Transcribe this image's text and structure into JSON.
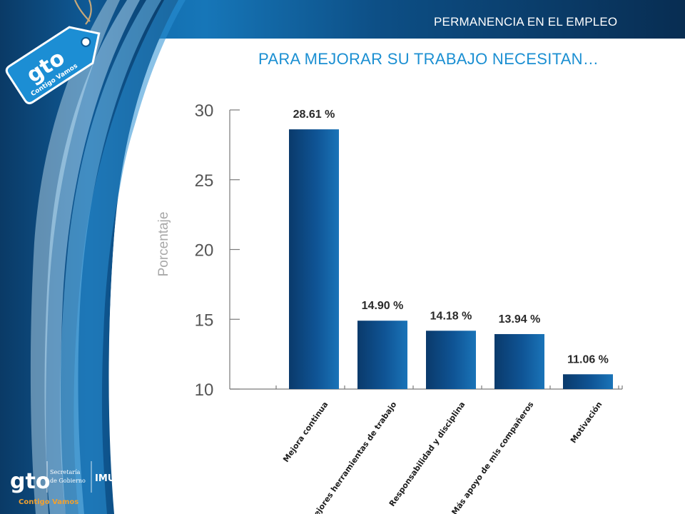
{
  "header": {
    "title": "PERMANENCIA EN EL EMPLEO"
  },
  "slide": {
    "title": "PARA MEJORAR SU TRABAJO NECESITAN…"
  },
  "logo_tag": {
    "brand": "gto",
    "tagline": "Contigo Vamos"
  },
  "footer_logo": {
    "brand": "gto",
    "org_line1": "Secretaría",
    "org_line2": "de Gobierno",
    "unit": "IMUG",
    "tagline": "Contigo Vamos"
  },
  "colors": {
    "bar_dark": "#0b3f73",
    "bar_light": "#1a72b5",
    "accent": "#1b8fd2",
    "navy": "#0a3560"
  },
  "chart_data": {
    "type": "bar",
    "ylabel": "Porcentaje",
    "xlabel": "",
    "ylim": [
      10,
      30
    ],
    "yticks": [
      10,
      15,
      20,
      25,
      30
    ],
    "categories": [
      "Mejora continua",
      "Mejores herramientas de trabajo",
      "Responsabilidad y disciplina",
      "Más apoyo de mis compañeros",
      "Motivación"
    ],
    "values": [
      28.61,
      14.9,
      14.18,
      13.94,
      11.06
    ],
    "value_labels": [
      "28.61 %",
      "14.90 %",
      "14.18 %",
      "13.94 %",
      "11.06 %"
    ],
    "grid": false
  }
}
